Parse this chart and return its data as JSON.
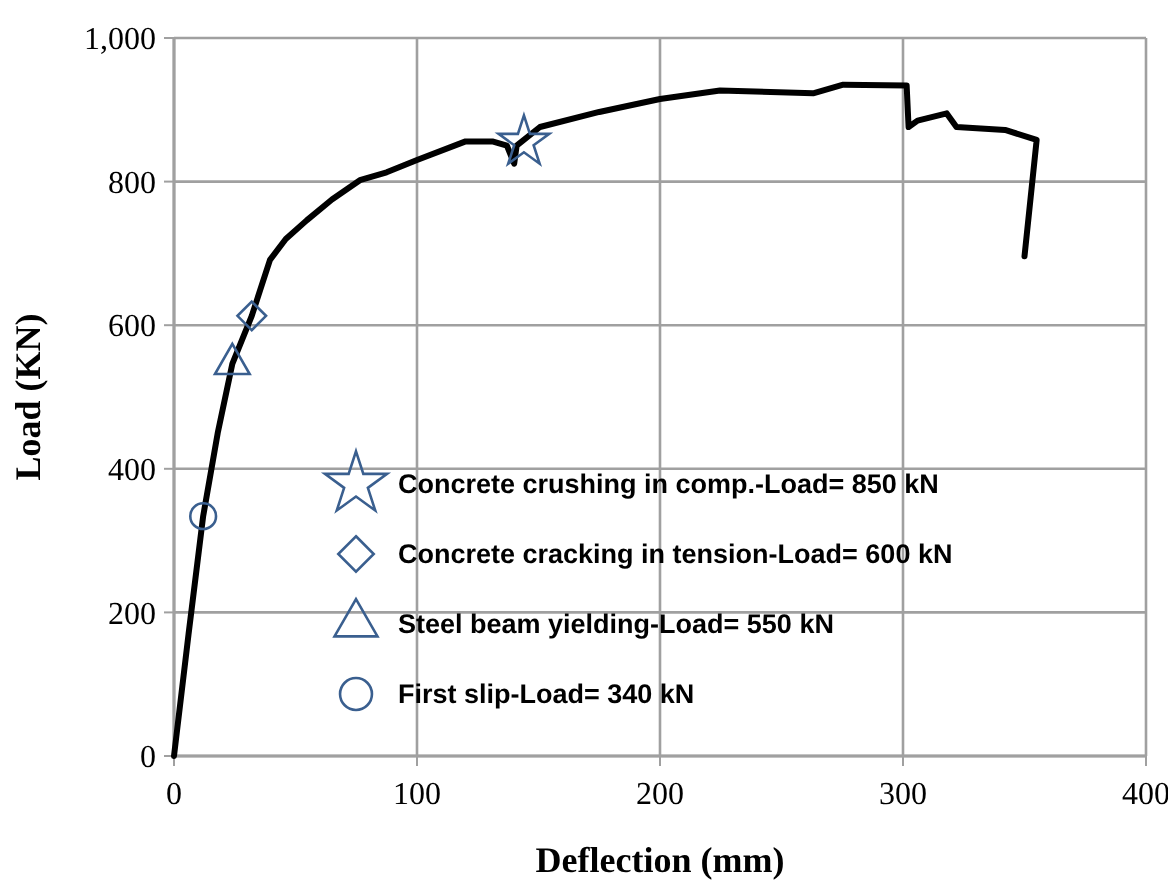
{
  "chart_data": {
    "type": "line",
    "xlabel": "Deflection (mm)",
    "ylabel": "Load (KN)",
    "xlim": [
      0,
      400
    ],
    "xticks": [
      0,
      100,
      200,
      300,
      400
    ],
    "ylim": [
      0,
      1000
    ],
    "yticks": [
      0,
      200,
      400,
      600,
      800,
      {
        "value": 1000,
        "label": "1,000"
      }
    ],
    "grid": true,
    "legend": "right",
    "series": [
      {
        "color": "#000000",
        "marker": "none",
        "x": [
          0,
          6,
          12,
          18,
          24,
          32,
          39.5,
          46,
          54.6,
          65,
          76.5,
          87.5,
          100,
          120,
          131,
          137,
          140,
          141,
          150.6,
          175,
          200,
          224.7,
          263,
          275.4,
          301.5,
          302.3,
          306,
          318,
          322,
          342,
          355,
          350
        ],
        "values": [
          0,
          170,
          334,
          450,
          546,
          613,
          691,
          720,
          746,
          775,
          802,
          813,
          830,
          856,
          856,
          850,
          825,
          850,
          876,
          897,
          915,
          927,
          923,
          935,
          934,
          876,
          885,
          895,
          876,
          872,
          858,
          696
        ]
      },
      {
        "type": "scatter",
        "name": "Concrete crushing in comp.-Load= 850 kN",
        "color": "#3a5f8f",
        "marker": "star",
        "x": [
          144
        ],
        "values": [
          855
        ]
      },
      {
        "type": "scatter",
        "name": "Concrete cracking in tension-Load= 600 kN",
        "color": "#3a5f8f",
        "marker": "diamond",
        "x": [
          32
        ],
        "values": [
          613
        ]
      },
      {
        "type": "scatter",
        "name": "Steel beam yielding-Load= 550 kN",
        "color": "#3a5f8f",
        "marker": "triangle",
        "x": [
          24
        ],
        "values": [
          546
        ]
      },
      {
        "type": "scatter",
        "name": "First slip-Load= 340 kN",
        "color": "#3a5f8f",
        "marker": "circle",
        "x": [
          12
        ],
        "values": [
          334
        ]
      }
    ]
  }
}
